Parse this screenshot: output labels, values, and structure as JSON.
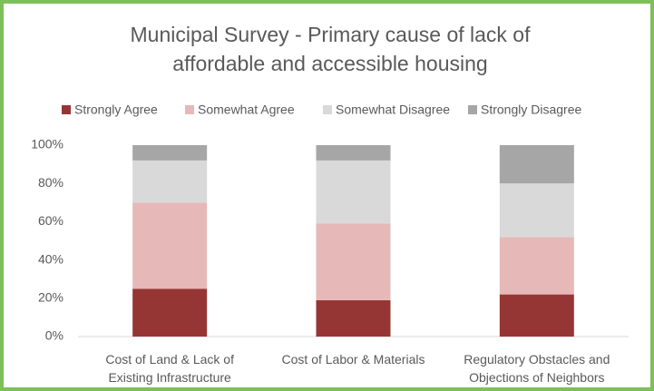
{
  "chart_data": {
    "type": "stacked_bar",
    "title": "Municipal Survey - Primary cause of lack of affordable and accessible housing",
    "categories": [
      "Cost of Land & Lack of Existing Infrastructure",
      "Cost of Labor & Materials",
      "Regulatory Obstacles and Objections of Neighbors"
    ],
    "series": [
      {
        "name": "Strongly Agree",
        "color": "#963634",
        "values": [
          25,
          19,
          22
        ]
      },
      {
        "name": "Somewhat Agree",
        "color": "#e6b8b7",
        "values": [
          45,
          40,
          30
        ]
      },
      {
        "name": "Somewhat Disagree",
        "color": "#d9d9d9",
        "values": [
          22,
          33,
          28
        ]
      },
      {
        "name": "Strongly Disagree",
        "color": "#a6a6a6",
        "values": [
          8,
          8,
          20
        ]
      }
    ],
    "ylim": [
      0,
      100
    ],
    "yticks": [
      {
        "value": 0,
        "label": "0%"
      },
      {
        "value": 20,
        "label": "20%"
      },
      {
        "value": 40,
        "label": "40%"
      },
      {
        "value": 60,
        "label": "60%"
      },
      {
        "value": 80,
        "label": "80%"
      },
      {
        "value": 100,
        "label": "100%"
      }
    ],
    "legend": "top"
  }
}
